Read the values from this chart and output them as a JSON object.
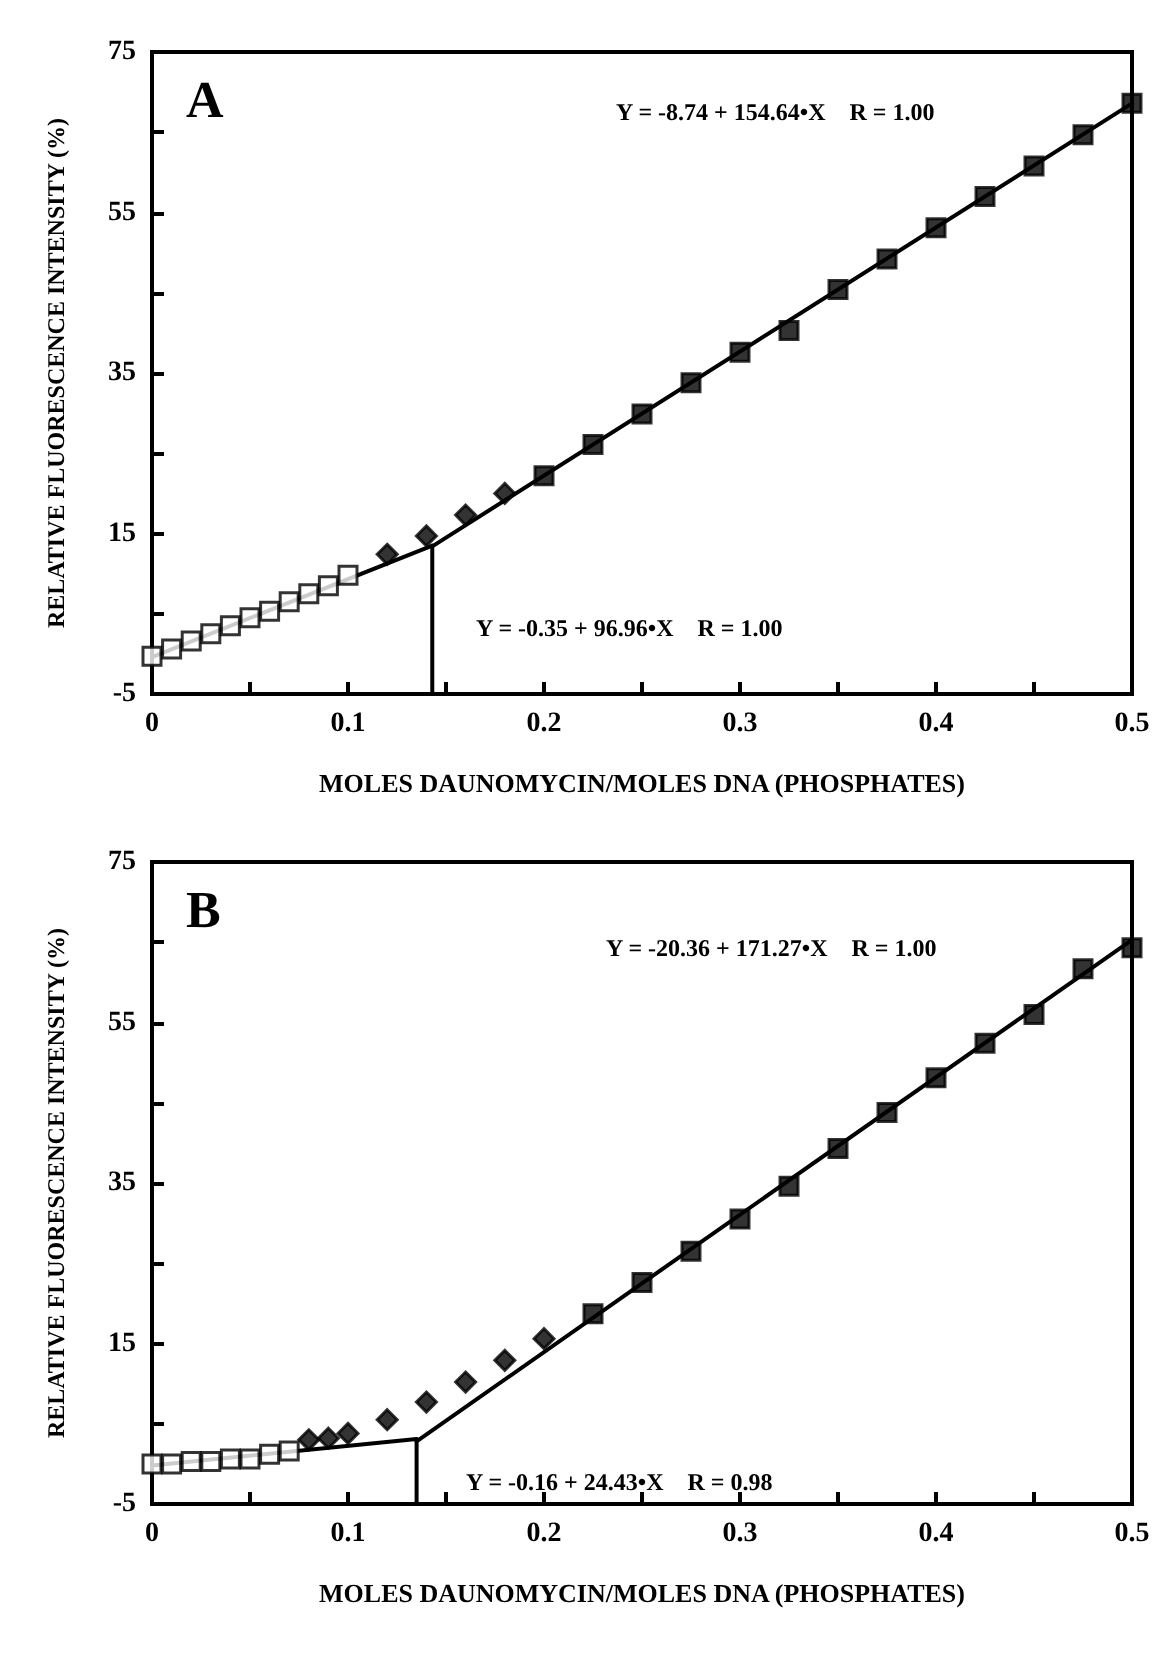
{
  "chart_data": [
    {
      "type": "scatter",
      "title": "A",
      "xlabel": "MOLES DAUNOMYCIN/MOLES DNA (PHOSPHATES)",
      "ylabel": "RELATIVE FLUORESCENCE INTENSITY (%)",
      "xlim": [
        0,
        0.5
      ],
      "xticks": [
        0,
        {
          "value": 0.05,
          "label": null
        },
        0.1,
        {
          "value": 0.15,
          "label": null
        },
        0.2,
        {
          "value": 0.25,
          "label": null
        },
        0.3,
        {
          "value": 0.35,
          "label": null
        },
        0.4,
        {
          "value": 0.45,
          "label": null
        },
        0.5
      ],
      "ylim": [
        -5,
        75
      ],
      "yticks": [
        -5,
        {
          "value": 5,
          "label": null
        },
        15,
        {
          "value": 25,
          "label": null
        },
        35,
        {
          "value": 45,
          "label": null
        },
        55,
        {
          "value": 65,
          "label": null
        },
        75
      ],
      "annotations": [
        "Y = -8.74 + 154.64•X    R = 1.00",
        "Y = -0.35 + 96.96•X    R = 1.00"
      ],
      "series": [
        {
          "color": "#ffffff",
          "marker": "square",
          "x": [
            0,
            0.01,
            0.02,
            0.03,
            0.04,
            0.05,
            0.06,
            0.07,
            0.08,
            0.09,
            0.1
          ],
          "values": [
            -0.3,
            0.6,
            1.6,
            2.5,
            3.5,
            4.5,
            5.3,
            6.5,
            7.5,
            8.5,
            9.8
          ]
        },
        {
          "color": "#000000",
          "marker": "diamond",
          "x": [
            0.12,
            0.14,
            0.16,
            0.18
          ],
          "values": [
            12.4,
            14.7,
            17.3,
            20.0
          ]
        },
        {
          "color": "#000000",
          "marker": "square",
          "x": [
            0.2,
            0.225,
            0.25,
            0.275,
            0.3,
            0.325,
            0.35,
            0.375,
            0.4,
            0.425,
            0.45,
            0.475,
            0.5
          ],
          "values": [
            22.2,
            26.1,
            29.9,
            33.8,
            37.6,
            40.3,
            45.4,
            49.2,
            53.1,
            57.0,
            60.8,
            64.7,
            68.6
          ]
        },
        {
          "type": "line",
          "color": "#000000",
          "marker": "none",
          "line_style": "solid",
          "x": [
            0,
            0.143
          ],
          "values": [
            -0.4,
            13.5
          ]
        },
        {
          "type": "line",
          "color": "#000000",
          "marker": "none",
          "line_style": "solid",
          "x": [
            0.143,
            0.5
          ],
          "values": [
            13.4,
            68.6
          ]
        },
        {
          "type": "line",
          "color": "#000000",
          "marker": "none",
          "line_style": "solid",
          "x": [
            0.143,
            0.143
          ],
          "values": [
            -5,
            13.4
          ]
        }
      ]
    },
    {
      "type": "scatter",
      "title": "B",
      "xlabel": "MOLES DAUNOMYCIN/MOLES DNA (PHOSPHATES)",
      "ylabel": "RELATIVE FLUORESCENCE INTENSITY (%)",
      "xlim": [
        0,
        0.5
      ],
      "xticks": [
        0,
        {
          "value": 0.05,
          "label": null
        },
        0.1,
        {
          "value": 0.15,
          "label": null
        },
        0.2,
        {
          "value": 0.25,
          "label": null
        },
        0.3,
        {
          "value": 0.35,
          "label": null
        },
        0.4,
        {
          "value": 0.45,
          "label": null
        },
        0.5
      ],
      "ylim": [
        -5,
        75
      ],
      "yticks": [
        -5,
        {
          "value": 5,
          "label": null
        },
        15,
        {
          "value": 25,
          "label": null
        },
        35,
        {
          "value": 45,
          "label": null
        },
        55,
        {
          "value": 65,
          "label": null
        },
        75
      ],
      "annotations": [
        "Y = -20.36 + 171.27•X    R = 1.00",
        "Y = -0.16 + 24.43•X    R = 0.98"
      ],
      "series": [
        {
          "color": "#ffffff",
          "marker": "square",
          "x": [
            0,
            0.01,
            0.02,
            0.03,
            0.04,
            0.05,
            0.06,
            0.07
          ],
          "values": [
            0.0,
            0.0,
            0.3,
            0.3,
            0.6,
            0.6,
            1.2,
            1.6
          ]
        },
        {
          "color": "#000000",
          "marker": "diamond",
          "x": [
            0.08,
            0.09,
            0.1,
            0.12,
            0.14,
            0.16,
            0.18,
            0.2
          ],
          "values": [
            3.0,
            3.2,
            3.8,
            5.5,
            7.7,
            10.2,
            12.9,
            15.6
          ]
        },
        {
          "color": "#000000",
          "marker": "square",
          "x": [
            0.225,
            0.25,
            0.275,
            0.3,
            0.325,
            0.35,
            0.375,
            0.4,
            0.425,
            0.45,
            0.475,
            0.5
          ],
          "values": [
            18.7,
            22.6,
            26.5,
            30.5,
            34.6,
            39.3,
            43.8,
            48.1,
            52.4,
            56.0,
            61.7,
            64.3
          ]
        },
        {
          "type": "line",
          "color": "#000000",
          "marker": "none",
          "line_style": "solid",
          "x": [
            0,
            0.135
          ],
          "values": [
            -0.2,
            3.1
          ]
        },
        {
          "type": "line",
          "color": "#000000",
          "marker": "none",
          "line_style": "solid",
          "x": [
            0.135,
            0.5
          ],
          "values": [
            2.8,
            65.3
          ]
        },
        {
          "type": "line",
          "color": "#000000",
          "marker": "none",
          "line_style": "solid",
          "x": [
            0.135,
            0.135
          ],
          "values": [
            -5,
            3.1
          ]
        }
      ]
    }
  ]
}
